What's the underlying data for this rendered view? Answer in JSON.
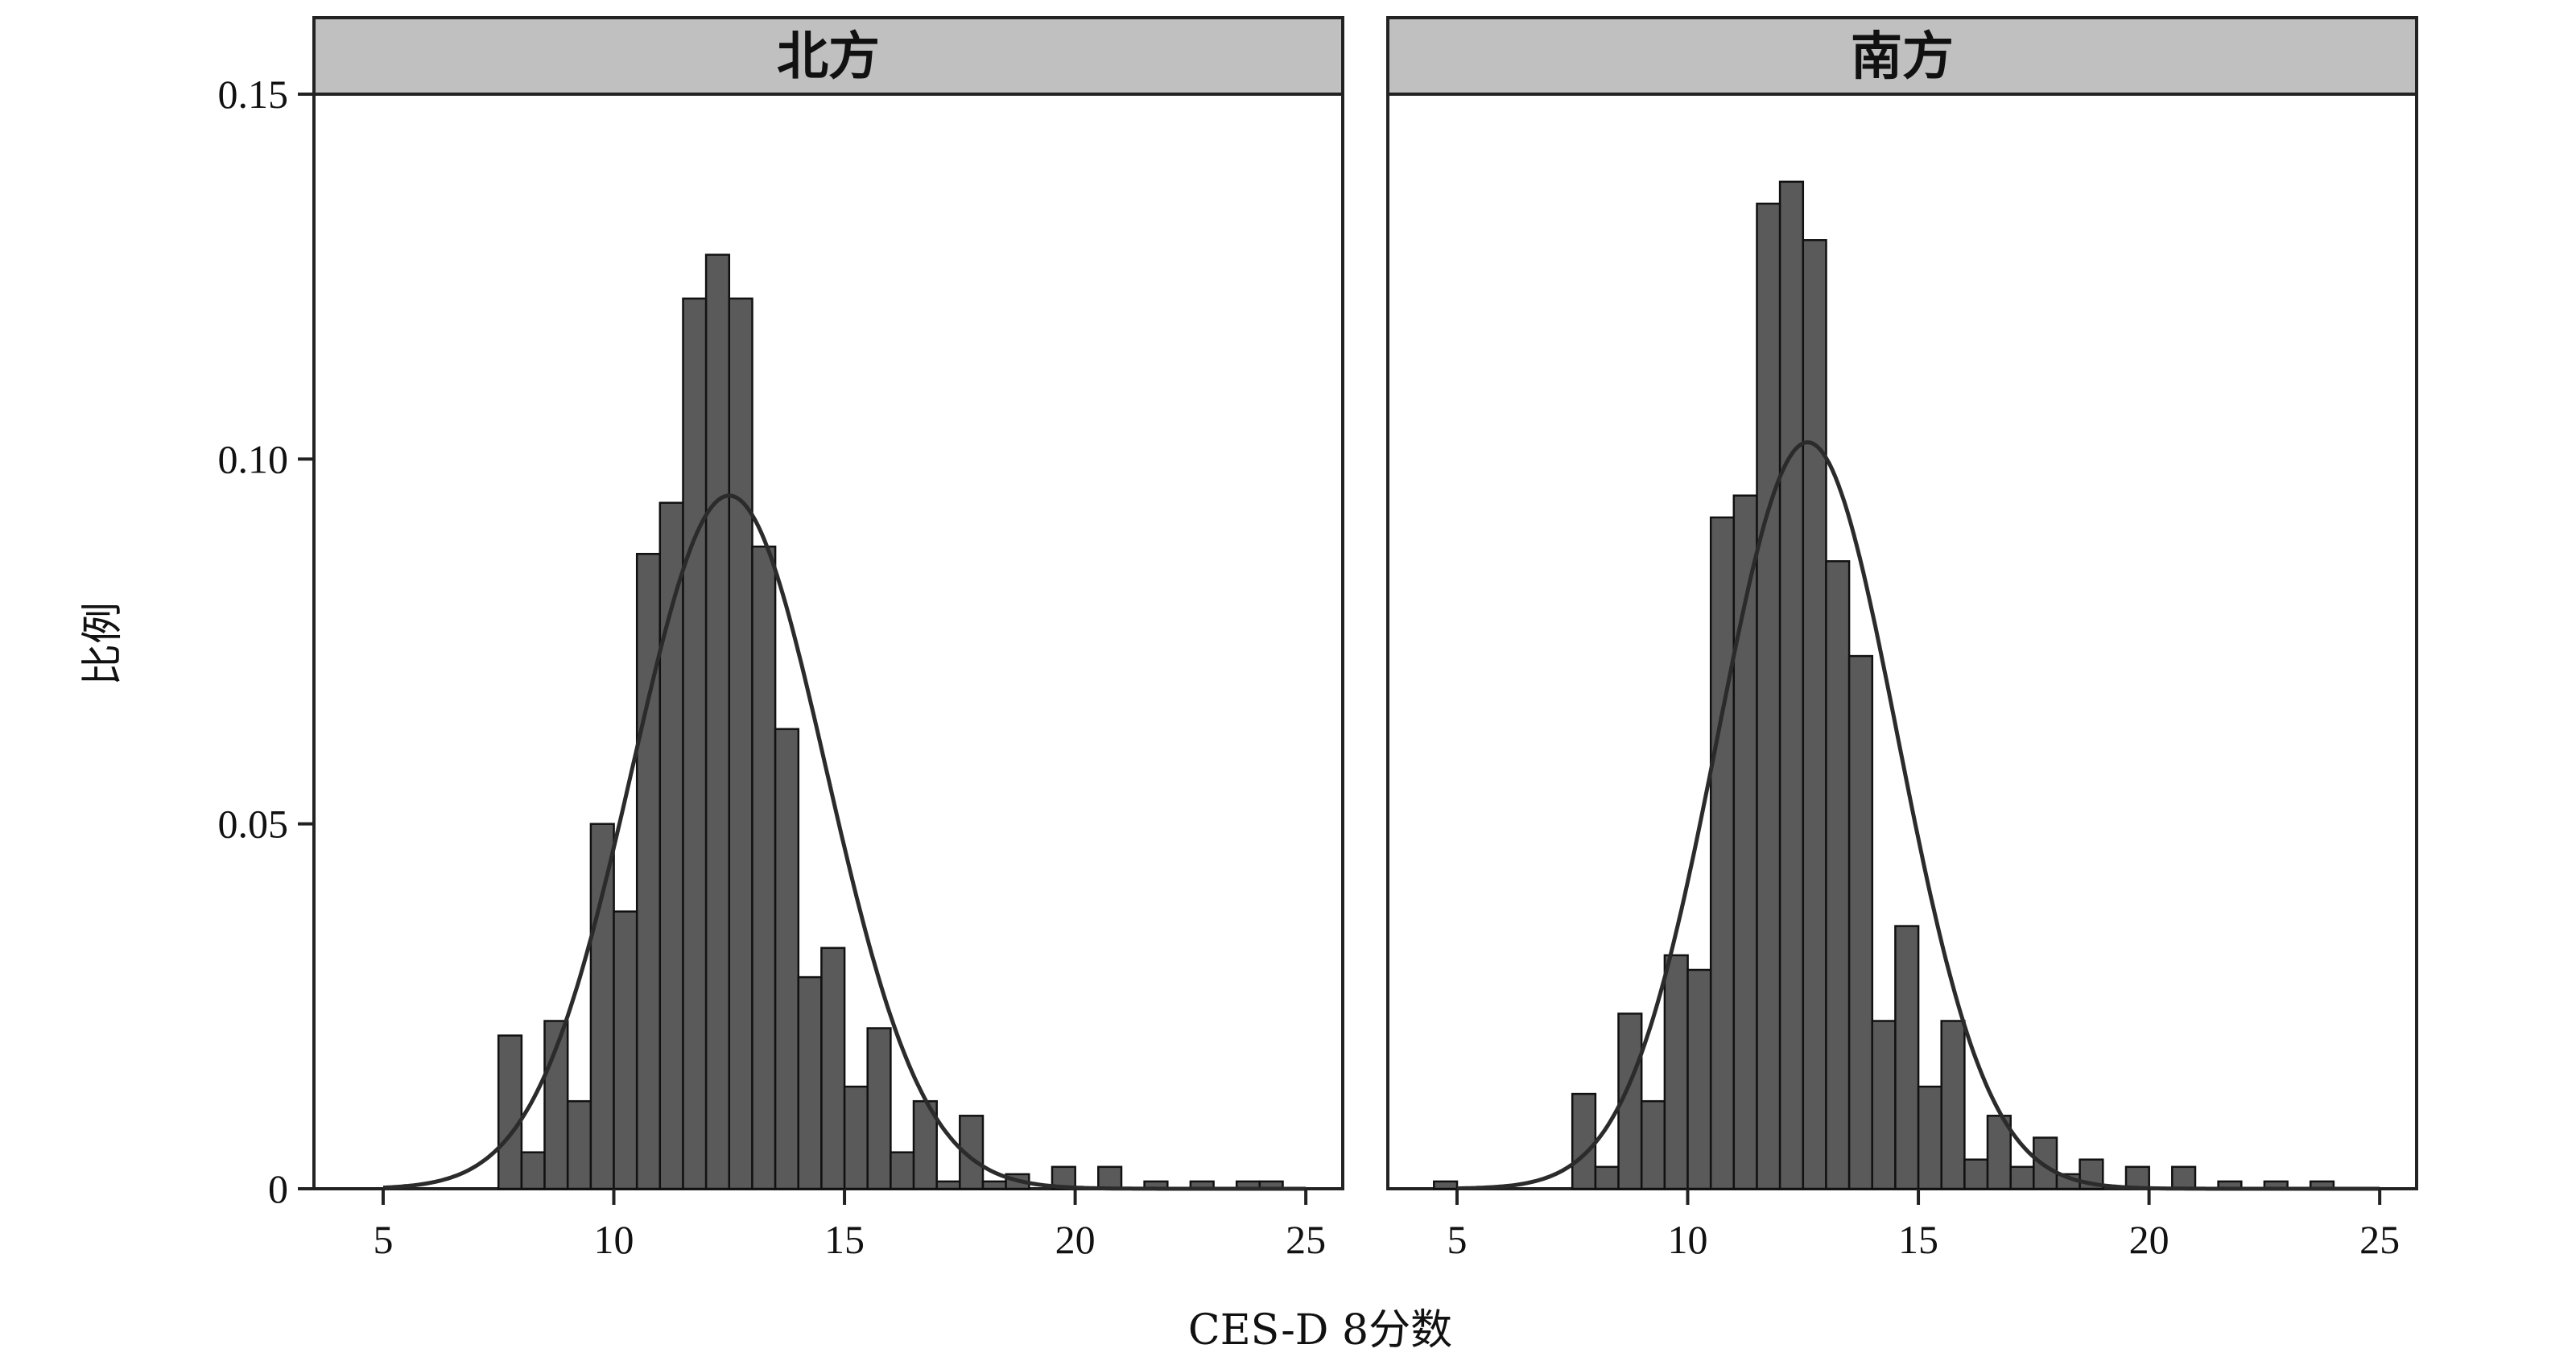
{
  "chart_data": {
    "type": "bar",
    "xlabel": "CES-D 8分数",
    "ylabel": "比例",
    "xlim": [
      3.5,
      25.8
    ],
    "ylim": [
      0,
      0.15
    ],
    "x_ticks": [
      5,
      10,
      15,
      20,
      25
    ],
    "y_ticks": [
      {
        "value": 0,
        "label": "0"
      },
      {
        "value": 0.05,
        "label": "0.05"
      },
      {
        "value": 0.1,
        "label": "0.10"
      },
      {
        "value": 0.15,
        "label": "0.15"
      }
    ],
    "bin_width": 0.5,
    "bar_color": "#5a5a5a",
    "curve_color": "#2b2b2b",
    "strip_color": "#c0c0c0",
    "panels": [
      {
        "title": "北方",
        "bins": [
          {
            "x": 7.5,
            "y": 0.021
          },
          {
            "x": 8.0,
            "y": 0.005
          },
          {
            "x": 8.5,
            "y": 0.023
          },
          {
            "x": 9.0,
            "y": 0.012
          },
          {
            "x": 9.5,
            "y": 0.05
          },
          {
            "x": 10.0,
            "y": 0.038
          },
          {
            "x": 10.5,
            "y": 0.087
          },
          {
            "x": 11.0,
            "y": 0.094
          },
          {
            "x": 11.5,
            "y": 0.122
          },
          {
            "x": 12.0,
            "y": 0.128
          },
          {
            "x": 12.5,
            "y": 0.122
          },
          {
            "x": 13.0,
            "y": 0.088
          },
          {
            "x": 13.5,
            "y": 0.063
          },
          {
            "x": 14.0,
            "y": 0.029
          },
          {
            "x": 14.5,
            "y": 0.033
          },
          {
            "x": 15.0,
            "y": 0.014
          },
          {
            "x": 15.5,
            "y": 0.022
          },
          {
            "x": 16.0,
            "y": 0.005
          },
          {
            "x": 16.5,
            "y": 0.012
          },
          {
            "x": 17.0,
            "y": 0.001
          },
          {
            "x": 17.5,
            "y": 0.01
          },
          {
            "x": 18.0,
            "y": 0.001
          },
          {
            "x": 18.5,
            "y": 0.002
          },
          {
            "x": 19.5,
            "y": 0.003
          },
          {
            "x": 20.5,
            "y": 0.003
          },
          {
            "x": 21.5,
            "y": 0.001
          },
          {
            "x": 22.5,
            "y": 0.001
          },
          {
            "x": 23.5,
            "y": 0.001
          },
          {
            "x": 24.0,
            "y": 0.001
          }
        ],
        "normal_curve": {
          "mean": 12.5,
          "sd": 2.1
        }
      },
      {
        "title": "南方",
        "bins": [
          {
            "x": 4.5,
            "y": 0.001
          },
          {
            "x": 7.5,
            "y": 0.013
          },
          {
            "x": 8.0,
            "y": 0.003
          },
          {
            "x": 8.5,
            "y": 0.024
          },
          {
            "x": 9.0,
            "y": 0.012
          },
          {
            "x": 9.5,
            "y": 0.032
          },
          {
            "x": 10.0,
            "y": 0.03
          },
          {
            "x": 10.5,
            "y": 0.092
          },
          {
            "x": 11.0,
            "y": 0.095
          },
          {
            "x": 11.5,
            "y": 0.135
          },
          {
            "x": 12.0,
            "y": 0.138
          },
          {
            "x": 12.5,
            "y": 0.13
          },
          {
            "x": 13.0,
            "y": 0.086
          },
          {
            "x": 13.5,
            "y": 0.073
          },
          {
            "x": 14.0,
            "y": 0.023
          },
          {
            "x": 14.5,
            "y": 0.036
          },
          {
            "x": 15.0,
            "y": 0.014
          },
          {
            "x": 15.5,
            "y": 0.023
          },
          {
            "x": 16.0,
            "y": 0.004
          },
          {
            "x": 16.5,
            "y": 0.01
          },
          {
            "x": 17.0,
            "y": 0.003
          },
          {
            "x": 17.5,
            "y": 0.007
          },
          {
            "x": 18.0,
            "y": 0.002
          },
          {
            "x": 18.5,
            "y": 0.004
          },
          {
            "x": 19.5,
            "y": 0.003
          },
          {
            "x": 20.5,
            "y": 0.003
          },
          {
            "x": 21.5,
            "y": 0.001
          },
          {
            "x": 22.5,
            "y": 0.001
          },
          {
            "x": 23.5,
            "y": 0.001
          }
        ],
        "normal_curve": {
          "mean": 12.6,
          "sd": 1.95
        }
      }
    ]
  }
}
